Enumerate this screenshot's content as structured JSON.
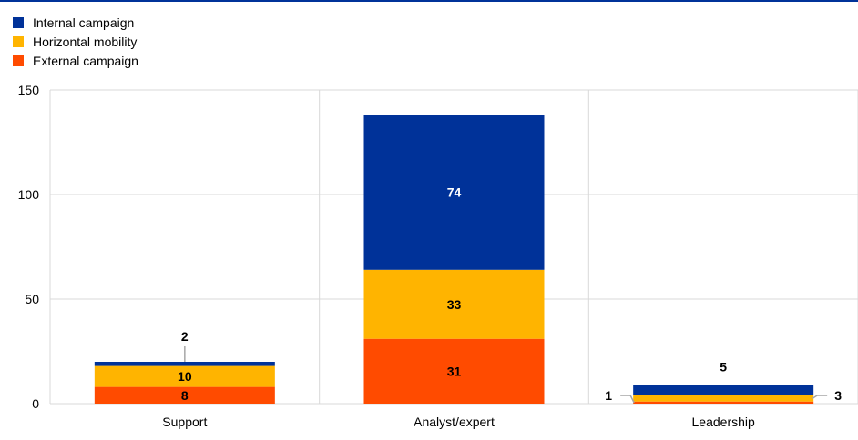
{
  "colors": {
    "internal": "#003299",
    "horizontal": "#FFB400",
    "external": "#FF4B00",
    "grid": "#d9d9d9",
    "leader": "#a6a6a6"
  },
  "legend": [
    {
      "label": "Internal campaign",
      "color": "#003299"
    },
    {
      "label": "Horizontal mobility",
      "color": "#FFB400"
    },
    {
      "label": "External campaign",
      "color": "#FF4B00"
    }
  ],
  "chart_data": {
    "type": "bar",
    "stacked": true,
    "categories": [
      "Support",
      "Analyst/expert",
      "Leadership"
    ],
    "series": [
      {
        "name": "External campaign",
        "values": [
          8,
          31,
          1
        ]
      },
      {
        "name": "Horizontal mobility",
        "values": [
          10,
          33,
          3
        ]
      },
      {
        "name": "Internal campaign",
        "values": [
          2,
          74,
          5
        ]
      }
    ],
    "ylim": [
      0,
      150
    ],
    "yticks": [
      0,
      50,
      100,
      150
    ],
    "ytick_labels": [
      "0",
      "50",
      "100",
      "150"
    ],
    "grid": true,
    "legend_position": "top-left",
    "data_labels": true
  }
}
